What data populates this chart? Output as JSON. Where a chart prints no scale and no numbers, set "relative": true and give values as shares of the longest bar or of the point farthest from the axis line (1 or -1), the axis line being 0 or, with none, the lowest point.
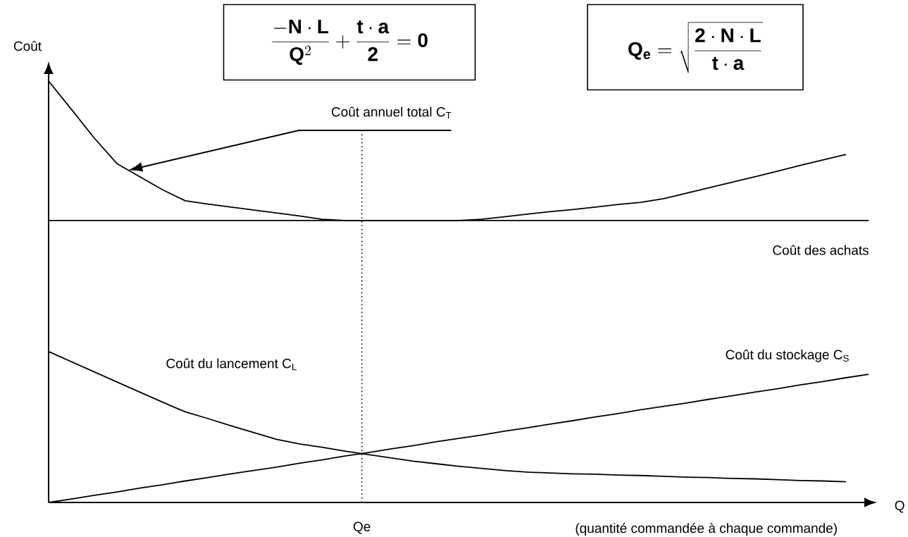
{
  "chart_data": {
    "type": "line",
    "relative": true,
    "ylabel": "Coût",
    "xlabel": "Q",
    "marker": "none",
    "line_style": "solid",
    "categories": [
      null,
      null,
      null,
      null,
      null,
      null,
      null,
      null,
      null,
      null,
      null,
      null,
      null,
      null,
      null,
      null,
      null,
      null,
      null,
      null,
      null,
      null,
      null,
      null,
      null,
      null,
      null,
      null,
      null,
      null,
      null,
      null,
      null,
      null,
      null,
      null,
      null
    ],
    "annotations": [
      "\\frac{-\\mathbf{N}\\cdot\\mathbf{L}}{\\mathbf{Q}^{2}}+\\frac{\\mathbf{t}\\cdot\\mathbf{a}}{\\mathbf{2}}=\\mathbf{0}",
      "\\mathbf{Q}_{\\mathbf{e}}=\\sqrt{\\frac{\\mathbf{2}\\cdot\\mathbf{N}\\cdot\\mathbf{L}}{\\mathbf{t}\\cdot\\mathbf{a}}}",
      "(quantité commandée à chaque commande)",
      "Qe",
      "Coût annuel total C$_{T}$"
    ],
    "series": [
      {
        "color": "#000000",
        "values": [
          1.0,
          0.933,
          0.865,
          0.804,
          0.773,
          0.742,
          0.716,
          0.708,
          0.701,
          0.694,
          0.687,
          0.68,
          0.672,
          0.669,
          0.669,
          0.669,
          0.669,
          0.669,
          0.669,
          0.672,
          0.678,
          0.684,
          0.69,
          0.695,
          0.701,
          0.707,
          0.712,
          0.721,
          0.734,
          0.747,
          0.76,
          0.773,
          0.786,
          0.8,
          0.813,
          0.826,
          null
        ]
      },
      {
        "name": "Coût des achats",
        "color": "#000000",
        "values": [
          0.669,
          0.669,
          0.669,
          0.669,
          0.669,
          0.669,
          0.669,
          0.669,
          0.669,
          0.669,
          0.669,
          0.669,
          0.669,
          0.669,
          0.669,
          0.669,
          0.669,
          0.669,
          0.669,
          0.669,
          0.669,
          0.669,
          0.669,
          0.669,
          0.669,
          0.669,
          0.669,
          0.669,
          0.669,
          0.669,
          0.669,
          0.669,
          0.669,
          0.669,
          0.669,
          0.669,
          0.669
        ]
      },
      {
        "name": "Coût du lancement C$_{L}$",
        "color": "#000000",
        "values": [
          0.358,
          0.334,
          0.31,
          0.286,
          0.262,
          0.238,
          0.215,
          0.199,
          0.182,
          0.166,
          0.15,
          0.139,
          0.131,
          0.122,
          0.114,
          0.106,
          0.098,
          0.092,
          0.086,
          0.081,
          0.076,
          0.072,
          0.07,
          0.068,
          0.067,
          0.065,
          0.064,
          0.062,
          0.06,
          0.059,
          0.057,
          0.056,
          0.054,
          0.052,
          0.051,
          0.049,
          null
        ]
      },
      {
        "name": "Coût du stockage C$_{S}$",
        "color": "#000000",
        "values": [
          0,
          0.008,
          0.017,
          0.025,
          0.034,
          0.042,
          0.051,
          0.059,
          0.068,
          0.076,
          0.084,
          0.093,
          0.101,
          0.11,
          0.118,
          0.127,
          0.135,
          0.144,
          0.152,
          0.16,
          0.169,
          0.177,
          0.186,
          0.194,
          0.203,
          0.211,
          0.22,
          0.228,
          0.236,
          0.245,
          0.253,
          0.262,
          0.27,
          0.279,
          0.287,
          0.296,
          0.304
        ]
      }
    ]
  }
}
